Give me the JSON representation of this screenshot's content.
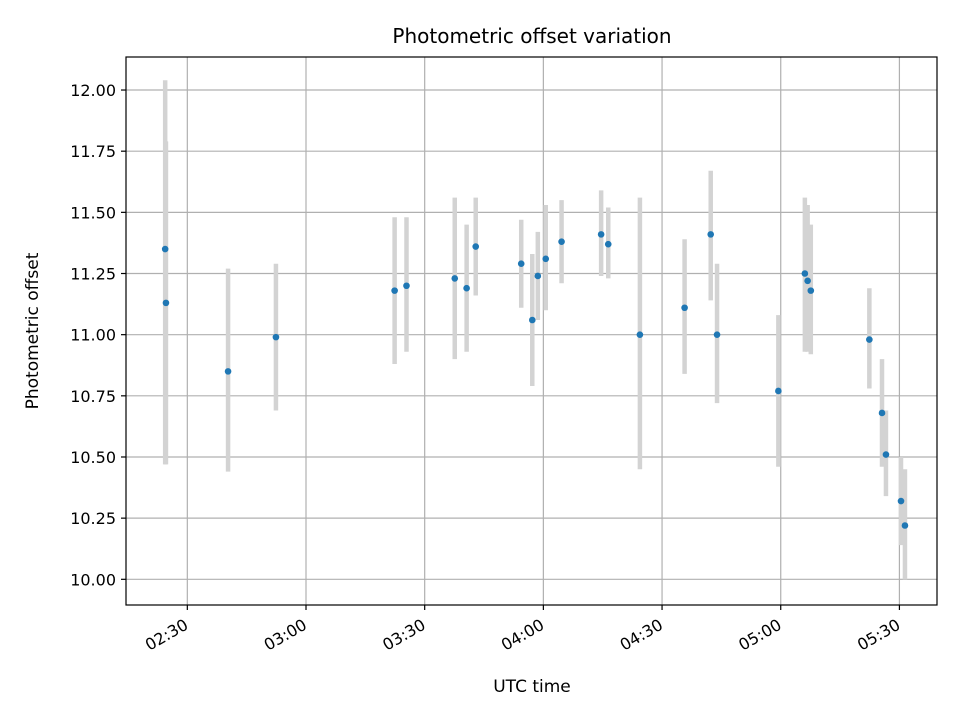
{
  "chart_data": {
    "type": "scatter",
    "title": "Photometric offset variation",
    "xlabel": "UTC time",
    "ylabel": "Photometric offset",
    "xlim_minutes": [
      134.5,
      339.5
    ],
    "ylim": [
      9.895,
      12.135
    ],
    "grid": true,
    "x_ticks": [
      {
        "label": "02:30",
        "minutes": 150
      },
      {
        "label": "03:00",
        "minutes": 180
      },
      {
        "label": "03:30",
        "minutes": 210
      },
      {
        "label": "04:00",
        "minutes": 240
      },
      {
        "label": "04:30",
        "minutes": 270
      },
      {
        "label": "05:00",
        "minutes": 300
      },
      {
        "label": "05:30",
        "minutes": 330
      }
    ],
    "y_ticks": [
      {
        "label": "10.00",
        "value": 10.0
      },
      {
        "label": "10.25",
        "value": 10.25
      },
      {
        "label": "10.50",
        "value": 10.5
      },
      {
        "label": "10.75",
        "value": 10.75
      },
      {
        "label": "11.00",
        "value": 11.0
      },
      {
        "label": "11.25",
        "value": 11.25
      },
      {
        "label": "11.50",
        "value": 11.5
      },
      {
        "label": "11.75",
        "value": 11.75
      },
      {
        "label": "12.00",
        "value": 12.0
      }
    ],
    "marker_color": "#1f77b4",
    "errorbar_color": "#d3d3d3",
    "points": [
      {
        "minutes": 144.4,
        "y": 11.35,
        "err_low": 10.47,
        "err_high": 12.04
      },
      {
        "minutes": 144.6,
        "y": 11.13,
        "err_low": 10.47,
        "err_high": 11.79
      },
      {
        "minutes": 160.3,
        "y": 10.85,
        "err_low": 10.44,
        "err_high": 11.27
      },
      {
        "minutes": 172.4,
        "y": 10.99,
        "err_low": 10.69,
        "err_high": 11.29
      },
      {
        "minutes": 202.4,
        "y": 11.18,
        "err_low": 10.88,
        "err_high": 11.48
      },
      {
        "minutes": 205.4,
        "y": 11.2,
        "err_low": 10.93,
        "err_high": 11.48
      },
      {
        "minutes": 217.6,
        "y": 11.23,
        "err_low": 10.9,
        "err_high": 11.56
      },
      {
        "minutes": 220.6,
        "y": 11.19,
        "err_low": 10.93,
        "err_high": 11.45
      },
      {
        "minutes": 222.9,
        "y": 11.36,
        "err_low": 11.16,
        "err_high": 11.56
      },
      {
        "minutes": 234.4,
        "y": 11.29,
        "err_low": 11.11,
        "err_high": 11.47
      },
      {
        "minutes": 237.2,
        "y": 11.06,
        "err_low": 10.79,
        "err_high": 11.33
      },
      {
        "minutes": 238.6,
        "y": 11.24,
        "err_low": 11.06,
        "err_high": 11.42
      },
      {
        "minutes": 240.6,
        "y": 11.31,
        "err_low": 11.1,
        "err_high": 11.53
      },
      {
        "minutes": 244.6,
        "y": 11.38,
        "err_low": 11.21,
        "err_high": 11.55
      },
      {
        "minutes": 254.6,
        "y": 11.41,
        "err_low": 11.24,
        "err_high": 11.59
      },
      {
        "minutes": 256.4,
        "y": 11.37,
        "err_low": 11.23,
        "err_high": 11.52
      },
      {
        "minutes": 264.4,
        "y": 11.0,
        "err_low": 10.45,
        "err_high": 11.56
      },
      {
        "minutes": 275.7,
        "y": 11.11,
        "err_low": 10.84,
        "err_high": 11.39
      },
      {
        "minutes": 282.3,
        "y": 11.41,
        "err_low": 11.14,
        "err_high": 11.67
      },
      {
        "minutes": 283.9,
        "y": 11.0,
        "err_low": 10.72,
        "err_high": 11.29
      },
      {
        "minutes": 299.4,
        "y": 10.77,
        "err_low": 10.46,
        "err_high": 11.08
      },
      {
        "minutes": 306.1,
        "y": 11.25,
        "err_low": 10.93,
        "err_high": 11.56
      },
      {
        "minutes": 306.8,
        "y": 11.22,
        "err_low": 10.93,
        "err_high": 11.53
      },
      {
        "minutes": 307.6,
        "y": 11.18,
        "err_low": 10.92,
        "err_high": 11.45
      },
      {
        "minutes": 322.4,
        "y": 10.98,
        "err_low": 10.78,
        "err_high": 11.19
      },
      {
        "minutes": 325.6,
        "y": 10.68,
        "err_low": 10.46,
        "err_high": 10.9
      },
      {
        "minutes": 326.6,
        "y": 10.51,
        "err_low": 10.34,
        "err_high": 10.69
      },
      {
        "minutes": 330.4,
        "y": 10.32,
        "err_low": 10.14,
        "err_high": 10.5
      },
      {
        "minutes": 331.4,
        "y": 10.22,
        "err_low": 10.0,
        "err_high": 10.45
      }
    ]
  }
}
